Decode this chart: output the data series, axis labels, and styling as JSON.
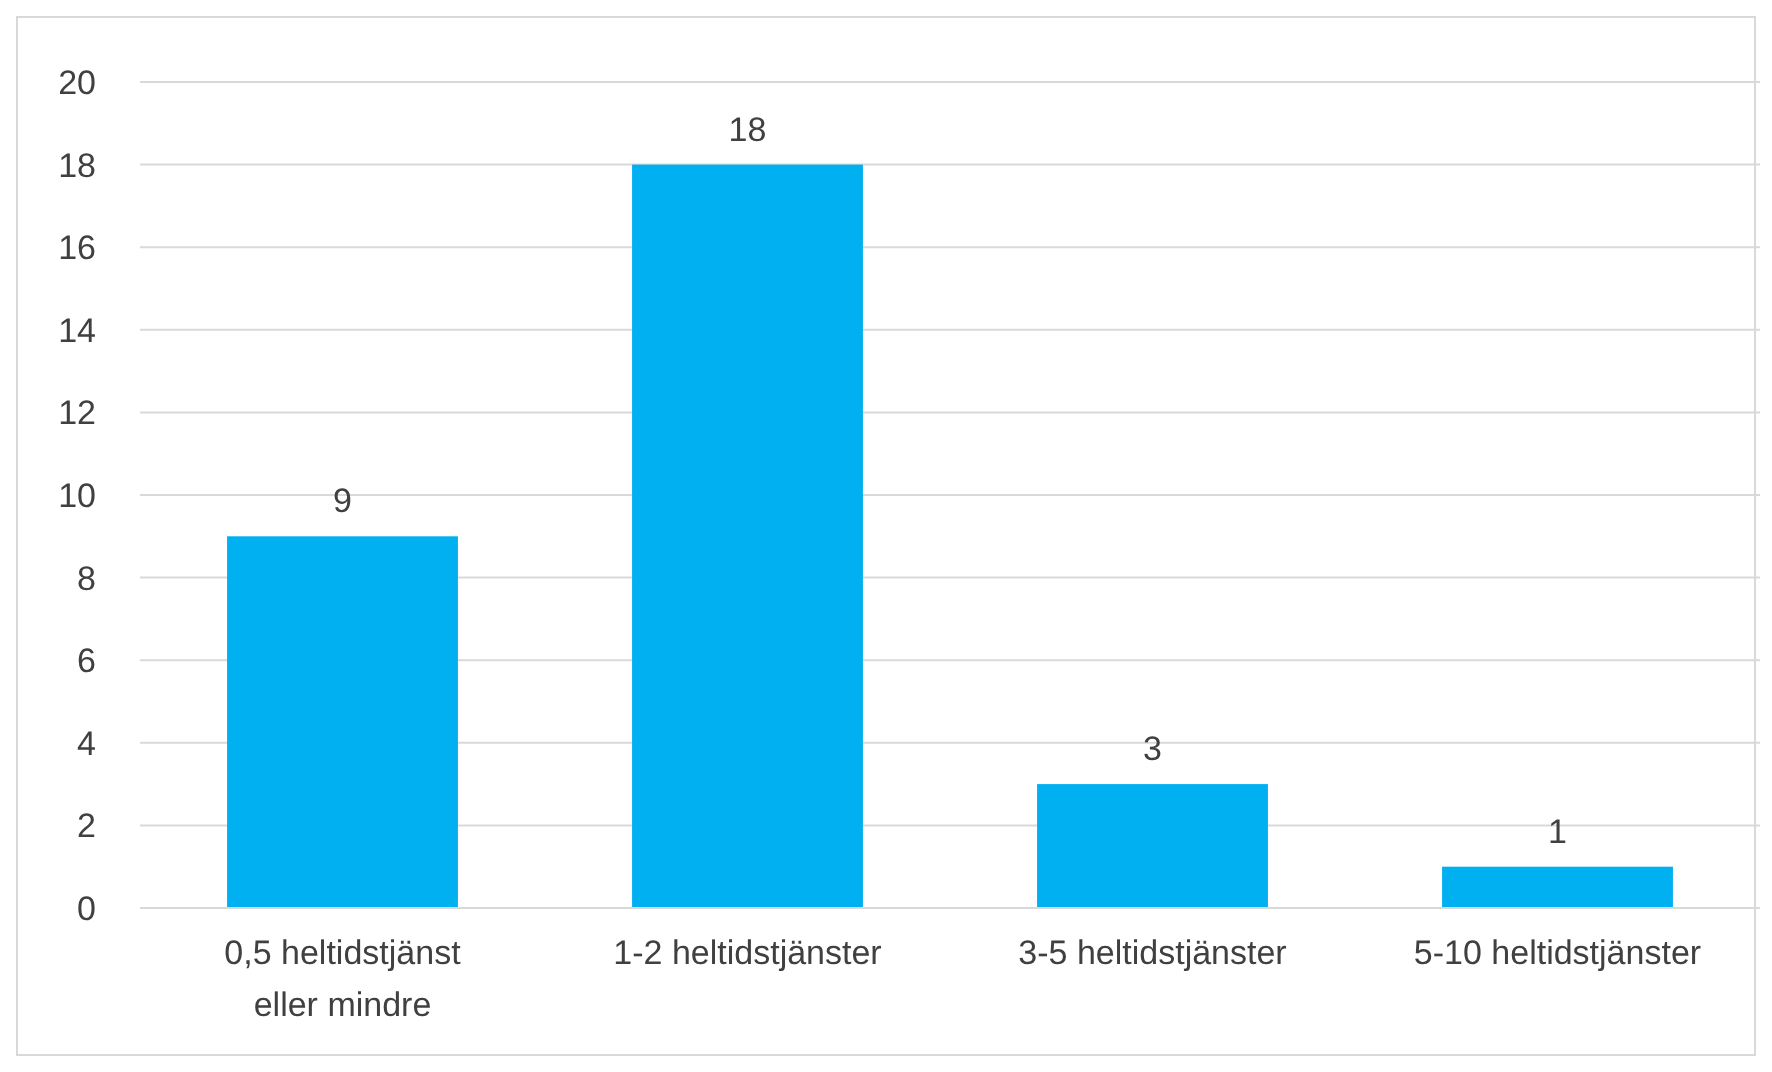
{
  "chart_data": {
    "type": "bar",
    "categories": [
      "0,5 heltidstjänst eller mindre",
      "1-2 heltidstjänster",
      "3-5 heltidstjänster",
      "5-10 heltidstjänster"
    ],
    "values": [
      9,
      18,
      3,
      1
    ],
    "color": "#00b0f0",
    "ylim": [
      0,
      20
    ],
    "yticks": [
      0,
      2,
      4,
      6,
      8,
      10,
      12,
      14,
      16,
      18,
      20
    ],
    "grid": "y",
    "data_labels": true
  }
}
